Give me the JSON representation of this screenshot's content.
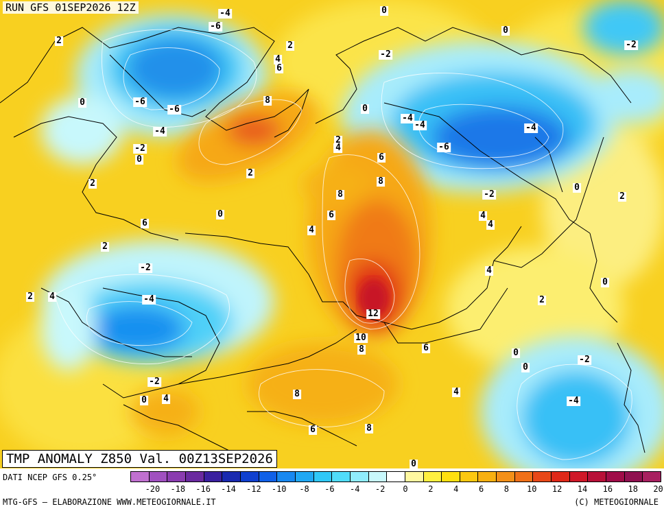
{
  "header": {
    "run": "RUN GFS 01SEP2026 12Z",
    "title": "TMP ANOMALY Z850 Val. 00Z13SEP2026"
  },
  "footer": {
    "source": "DATI NCEP GFS 0.25°",
    "credit": "MTG-GFS — ELABORAZIONE WWW.METEOGIORNALE.IT",
    "copyright": "(C) METEOGIORNALE"
  },
  "legend": {
    "colors": [
      "#c070d0",
      "#a050c0",
      "#8a3cb0",
      "#6a2aa0",
      "#3a20a0",
      "#1a2ab0",
      "#1040d0",
      "#1060e8",
      "#1888f0",
      "#20a8f4",
      "#30c8f8",
      "#50dcfa",
      "#90ecfc",
      "#c8f8fc",
      "#ffffff",
      "#fff8a0",
      "#fff040",
      "#ffe010",
      "#fcc810",
      "#f8b010",
      "#f49018",
      "#f07018",
      "#e84818",
      "#e02818",
      "#d01828",
      "#b81038",
      "#a00c48",
      "#901050",
      "#a82060"
    ],
    "ticks": [
      "-20",
      "-18",
      "-16",
      "-14",
      "-12",
      "-10",
      "-8",
      "-6",
      "-4",
      "-2",
      "0",
      "2",
      "4",
      "6",
      "8",
      "10",
      "12",
      "14",
      "16",
      "18",
      "20"
    ]
  },
  "contour_labels": [
    "-4",
    "-6",
    "0",
    "0",
    "-2",
    "2",
    "4",
    "6",
    "2",
    "-6",
    "-6",
    "0",
    "-4",
    "-2",
    "0",
    "8",
    "2",
    "0",
    "2",
    "4",
    "-4",
    "-4",
    "-4",
    "-6",
    "-2",
    "2",
    "6",
    "8",
    "8",
    "6",
    "2",
    "0",
    "4",
    "4",
    "-2",
    "4",
    "2",
    "2",
    "4",
    "-4",
    "12",
    "10",
    "8",
    "6",
    "2",
    "4",
    "-2",
    "0",
    "4",
    "8",
    "4",
    "6",
    "8",
    "0",
    "0",
    "-2",
    "-4",
    "0",
    "2",
    "0",
    "6",
    "0",
    "-2"
  ]
}
